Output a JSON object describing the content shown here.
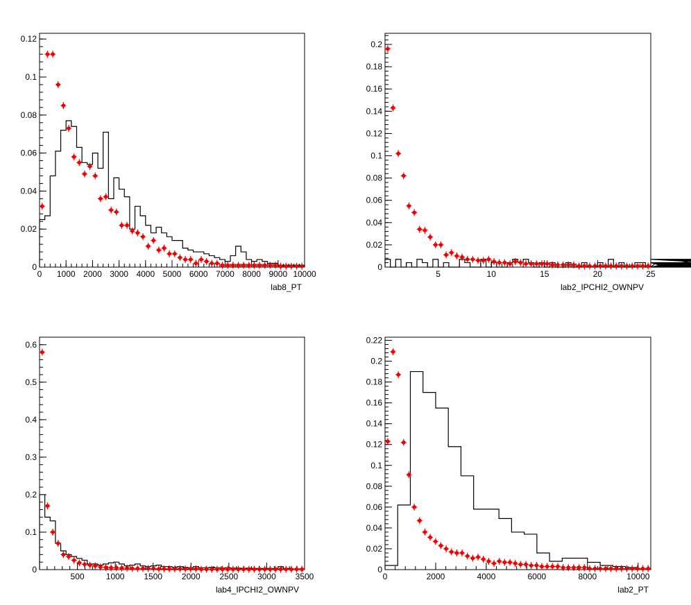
{
  "chart_data": [
    {
      "type": "histogram",
      "xlabel": "lab8_PT",
      "xlim": [
        0,
        10000
      ],
      "ylim": [
        0,
        0.123
      ],
      "xticks": [
        0,
        1000,
        2000,
        3000,
        4000,
        5000,
        6000,
        7000,
        8000,
        9000,
        10000
      ],
      "xtick_labels": [
        "0",
        "1000",
        "2000",
        "3000",
        "4000",
        "5000",
        "6000",
        "7000",
        "8000",
        "9000",
        "10000"
      ],
      "yticks": [
        0,
        0.02,
        0.04,
        0.06,
        0.08,
        0.1,
        0.12
      ],
      "ytick_labels": [
        "0",
        "0.02",
        "0.04",
        "0.06",
        "0.08",
        "0.1",
        "0.12"
      ],
      "bin_width": 200,
      "line_series": [
        0.025,
        0.027,
        0.048,
        0.061,
        0.072,
        0.077,
        0.074,
        0.063,
        0.055,
        0.054,
        0.06,
        0.052,
        0.071,
        0.036,
        0.047,
        0.041,
        0.037,
        0.02,
        0.032,
        0.027,
        0.022,
        0.018,
        0.021,
        0.018,
        0.016,
        0.014,
        0.014,
        0.01,
        0.009,
        0.008,
        0.008,
        0.007,
        0.006,
        0.005,
        0.004,
        0.003,
        0.006,
        0.011,
        0.008,
        0.004,
        0.003,
        0.004,
        0.003,
        0.002,
        0.002,
        0.001,
        0.001,
        0.001,
        0.001,
        0.001
      ],
      "marker_series": [
        0.032,
        0.112,
        0.112,
        0.096,
        0.085,
        0.073,
        0.058,
        0.055,
        0.049,
        0.053,
        0.048,
        0.036,
        0.037,
        0.03,
        0.029,
        0.022,
        0.022,
        0.019,
        0.018,
        0.016,
        0.011,
        0.014,
        0.009,
        0.01,
        0.007,
        0.007,
        0.005,
        0.004,
        0.004,
        0.002,
        0.004,
        0.003,
        0.002,
        0.002,
        0.001,
        0.001,
        0.001,
        0.001,
        0.001,
        0.001,
        0.001,
        0.001,
        0.001,
        0.001,
        0.001,
        0.0005,
        0.0005,
        0.0005,
        0.0005,
        0.0005
      ]
    },
    {
      "type": "histogram",
      "xlabel": "lab2_IPCHI2_OWNPV",
      "xlim": [
        0,
        25
      ],
      "ylim": [
        0,
        0.21
      ],
      "xticks": [
        5,
        10,
        15,
        20,
        25
      ],
      "xtick_labels": [
        "5",
        "10",
        "15",
        "20",
        "25"
      ],
      "yticks": [
        0,
        0.02,
        0.04,
        0.06,
        0.08,
        0.1,
        0.12,
        0.14,
        0.16,
        0.18,
        0.2
      ],
      "ytick_labels": [
        "0",
        "0.02",
        "0.04",
        "0.06",
        "0.08",
        "0.1",
        "0.12",
        "0.14",
        "0.16",
        "0.18",
        "0.2"
      ],
      "bin_width": 0.5,
      "line_series": [
        0.007,
        0,
        0.007,
        0,
        0.004,
        0,
        0.007,
        0.004,
        0,
        0.007,
        0,
        0.004,
        0,
        0,
        0.007,
        0.004,
        0,
        0,
        0.007,
        0,
        0.004,
        0,
        0,
        0.004,
        0.007,
        0.004,
        0.007,
        0.004,
        0,
        0.004,
        0,
        0.004,
        0,
        0,
        0.004,
        0,
        0,
        0.004,
        0,
        0,
        0.004,
        0,
        0.007,
        0,
        0.004,
        0,
        0,
        0.004,
        0.004,
        0,
        0,
        0.004,
        0.004,
        0,
        0.004,
        0,
        0,
        0.004,
        0.004,
        0,
        0.007,
        0.004,
        0,
        0.004,
        0.004,
        0,
        0,
        0.004,
        0,
        0.007,
        0.004,
        0,
        0,
        0.004,
        0.004,
        0,
        0.004,
        0,
        0.007,
        0.004,
        0,
        0.007,
        0,
        0.004,
        0,
        0.004,
        0,
        0,
        0.004,
        0.004,
        0,
        0,
        0.007,
        0.004,
        0,
        0.004,
        0.004,
        0,
        0.007,
        0.004
      ],
      "marker_x": [
        0.25,
        0.75,
        1.25,
        1.75,
        2.25,
        2.75,
        3.25,
        3.75,
        4.25,
        4.75,
        5.25,
        5.75,
        6.25,
        6.75,
        7.25,
        7.75,
        8.25,
        8.75,
        9.25,
        9.75,
        10.25,
        10.75,
        11.25,
        11.75,
        12.25,
        12.75,
        13.25,
        13.75,
        14.25,
        14.75,
        15.25,
        15.75,
        16.25,
        16.75,
        17.25,
        17.75,
        18.25,
        18.75,
        19.25,
        19.75,
        20.25,
        20.75,
        21.25,
        21.75,
        22.25,
        22.75,
        23.25,
        23.75,
        24.25,
        24.75
      ],
      "marker_series": [
        0.196,
        0.143,
        0.102,
        0.082,
        0.055,
        0.049,
        0.034,
        0.033,
        0.027,
        0.02,
        0.02,
        0.011,
        0.013,
        0.01,
        0.009,
        0.007,
        0.007,
        0.006,
        0.006,
        0.007,
        0.005,
        0.004,
        0.004,
        0.003,
        0.005,
        0.004,
        0.003,
        0.003,
        0.003,
        0.003,
        0.003,
        0.002,
        0.002,
        0.002,
        0.002,
        0.002,
        0.001,
        0.001,
        0.001,
        0.001,
        0.001,
        0.001,
        0.001,
        0.001,
        0.001,
        0.001,
        0.001,
        0.001,
        0.001,
        0.001
      ]
    },
    {
      "type": "histogram",
      "xlabel": "lab4_IPCHI2_OWNPV",
      "xlim": [
        0,
        3500
      ],
      "ylim": [
        0,
        0.62
      ],
      "xticks": [
        500,
        1000,
        1500,
        2000,
        2500,
        3000,
        3500
      ],
      "xtick_labels": [
        "500",
        "1000",
        "1500",
        "2000",
        "2500",
        "3000",
        "3500"
      ],
      "yticks": [
        0,
        0.1,
        0.2,
        0.3,
        0.4,
        0.5,
        0.6
      ],
      "ytick_labels": [
        "0",
        "0.1",
        "0.2",
        "0.3",
        "0.4",
        "0.5",
        "0.6"
      ],
      "bin_width": 70,
      "line_series": [
        0.2,
        0.14,
        0.13,
        0.07,
        0.05,
        0.04,
        0.035,
        0.03,
        0.025,
        0.015,
        0.015,
        0.012,
        0.015,
        0.018,
        0.02,
        0.015,
        0.01,
        0.012,
        0.015,
        0.01,
        0.008,
        0.01,
        0.012,
        0.008,
        0.008,
        0.006,
        0.008,
        0.006,
        0.005,
        0.008,
        0.005,
        0.005,
        0.006,
        0.005,
        0.004,
        0.005,
        0.004,
        0.004,
        0.003,
        0.004,
        0.003,
        0.003,
        0.003,
        0.003,
        0.003,
        0.008,
        0.003,
        0.002,
        0.002,
        0.002
      ],
      "marker_series": [
        0.58,
        0.17,
        0.1,
        0.07,
        0.04,
        0.035,
        0.025,
        0.018,
        0.014,
        0.012,
        0.01,
        0.007,
        0.006,
        0.005,
        0.005,
        0.004,
        0.004,
        0.003,
        0.003,
        0.003,
        0.003,
        0.003,
        0.002,
        0.002,
        0.002,
        0.002,
        0.002,
        0.002,
        0.002,
        0.002,
        0.001,
        0.001,
        0.001,
        0.001,
        0.001,
        0.001,
        0.001,
        0.001,
        0.001,
        0.001,
        0.001,
        0.001,
        0.001,
        0.001,
        0.001,
        0.001,
        0.001,
        0.001,
        0.001,
        0.001
      ]
    },
    {
      "type": "histogram",
      "xlabel": "lab2_PT",
      "xlim": [
        0,
        10500
      ],
      "ylim": [
        0,
        0.223
      ],
      "xticks": [
        0,
        2000,
        4000,
        6000,
        8000,
        10000
      ],
      "xtick_labels": [
        "0",
        "2000",
        "4000",
        "6000",
        "8000",
        "10000"
      ],
      "yticks": [
        0,
        0.02,
        0.04,
        0.06,
        0.08,
        0.1,
        0.12,
        0.14,
        0.16,
        0.18,
        0.2,
        0.22
      ],
      "ytick_labels": [
        "0",
        "0.02",
        "0.04",
        "0.06",
        "0.08",
        "0.1",
        "0.12",
        "0.14",
        "0.16",
        "0.18",
        "0.2",
        "0.22"
      ],
      "bin_width": 500,
      "line_series": [
        0.004,
        0.062,
        0.19,
        0.17,
        0.155,
        0.118,
        0.09,
        0.058,
        0.058,
        0.049,
        0.036,
        0.034,
        0.016,
        0.008,
        0.011,
        0.011,
        0.007,
        0.004,
        0.003,
        0.002,
        0.001
      ],
      "marker_x": [
        105,
        315,
        525,
        735,
        945,
        1155,
        1365,
        1575,
        1785,
        1995,
        2205,
        2415,
        2625,
        2835,
        3045,
        3255,
        3465,
        3675,
        3885,
        4095,
        4305,
        4515,
        4725,
        4935,
        5145,
        5355,
        5565,
        5775,
        5985,
        6195,
        6405,
        6615,
        6825,
        7035,
        7245,
        7455,
        7665,
        7875,
        8085,
        8295,
        8505,
        8715,
        8925,
        9135,
        9345,
        9555,
        9765,
        9975,
        10185,
        10395
      ],
      "marker_series": [
        0.123,
        0.209,
        0.187,
        0.122,
        0.091,
        0.06,
        0.047,
        0.036,
        0.031,
        0.027,
        0.023,
        0.02,
        0.017,
        0.016,
        0.016,
        0.013,
        0.011,
        0.012,
        0.01,
        0.008,
        0.006,
        0.008,
        0.007,
        0.007,
        0.006,
        0.005,
        0.005,
        0.004,
        0.004,
        0.003,
        0.003,
        0.003,
        0.003,
        0.002,
        0.002,
        0.002,
        0.002,
        0.002,
        0.001,
        0.001,
        0.001,
        0.001,
        0.001,
        0.001,
        0.001,
        0.001,
        0.001,
        0.001,
        0.001,
        0.001
      ]
    }
  ],
  "colors": {
    "line": "#000000",
    "marker": "#ee0000",
    "axis": "#000000"
  }
}
